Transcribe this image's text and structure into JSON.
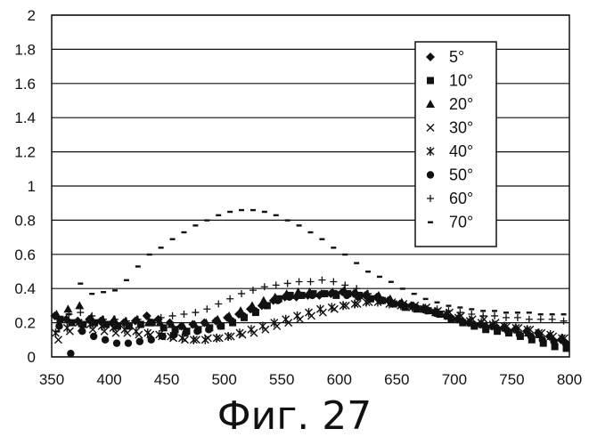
{
  "caption": "Фиг. 27",
  "chart_data": {
    "type": "scatter",
    "title": "",
    "xlabel": "",
    "ylabel": "",
    "xlim": [
      350,
      800
    ],
    "ylim": [
      0,
      2
    ],
    "grid": true,
    "legend_position": "top-right",
    "x_ticks": [
      "350",
      "400",
      "450",
      "500",
      "550",
      "600",
      "650",
      "700",
      "750",
      "800"
    ],
    "y_ticks": [
      "0",
      "0.2",
      "0.4",
      "0.6",
      "0.8",
      "1",
      "1.2",
      "1.4",
      "1.6",
      "1.8",
      "2"
    ],
    "x": [
      355,
      365,
      375,
      385,
      395,
      405,
      415,
      425,
      435,
      445,
      455,
      465,
      475,
      485,
      495,
      505,
      515,
      525,
      535,
      545,
      555,
      565,
      575,
      585,
      595,
      605,
      615,
      625,
      635,
      645,
      655,
      665,
      675,
      685,
      695,
      705,
      715,
      725,
      735,
      745,
      755,
      765,
      775,
      785,
      795
    ],
    "series": [
      {
        "name": "5°",
        "marker": "diamond",
        "values": [
          0.24,
          0.22,
          0.21,
          0.22,
          0.21,
          0.2,
          0.2,
          0.21,
          0.24,
          0.22,
          0.2,
          0.18,
          0.19,
          0.2,
          0.21,
          0.23,
          0.25,
          0.28,
          0.3,
          0.33,
          0.35,
          0.35,
          0.36,
          0.36,
          0.37,
          0.38,
          0.37,
          0.36,
          0.35,
          0.33,
          0.31,
          0.3,
          0.28,
          0.26,
          0.24,
          0.22,
          0.2,
          0.19,
          0.18,
          0.17,
          0.16,
          0.15,
          0.14,
          0.12,
          0.1
        ]
      },
      {
        "name": "10°",
        "marker": "square",
        "values": [
          0.22,
          0.2,
          0.19,
          0.2,
          0.19,
          0.18,
          0.18,
          0.19,
          0.2,
          0.17,
          0.16,
          0.15,
          0.16,
          0.17,
          0.18,
          0.2,
          0.23,
          0.26,
          0.3,
          0.34,
          0.36,
          0.36,
          0.37,
          0.37,
          0.36,
          0.37,
          0.36,
          0.34,
          0.33,
          0.31,
          0.29,
          0.28,
          0.27,
          0.25,
          0.22,
          0.2,
          0.18,
          0.16,
          0.15,
          0.14,
          0.12,
          0.1,
          0.08,
          0.06,
          0.05
        ]
      },
      {
        "name": "20°",
        "marker": "triangle",
        "values": [
          0.25,
          0.28,
          0.3,
          0.23,
          0.22,
          0.22,
          0.21,
          0.22,
          0.2,
          0.2,
          0.19,
          0.18,
          0.19,
          0.2,
          0.22,
          0.24,
          0.27,
          0.3,
          0.33,
          0.35,
          0.37,
          0.38,
          0.38,
          0.37,
          0.38,
          0.39,
          0.38,
          0.37,
          0.36,
          0.34,
          0.32,
          0.3,
          0.28,
          0.26,
          0.24,
          0.22,
          0.2,
          0.19,
          0.18,
          0.17,
          0.16,
          0.14,
          0.13,
          0.12,
          0.11
        ]
      },
      {
        "name": "30°",
        "marker": "x",
        "values": [
          0.1,
          0.15,
          0.17,
          0.16,
          0.15,
          0.14,
          0.14,
          0.13,
          0.13,
          0.12,
          0.11,
          0.1,
          0.1,
          0.11,
          0.11,
          0.12,
          0.13,
          0.14,
          0.16,
          0.18,
          0.2,
          0.22,
          0.24,
          0.26,
          0.28,
          0.3,
          0.31,
          0.32,
          0.33,
          0.32,
          0.31,
          0.3,
          0.29,
          0.27,
          0.26,
          0.24,
          0.22,
          0.22,
          0.2,
          0.18,
          0.17,
          0.16,
          0.14,
          0.12,
          0.11
        ]
      },
      {
        "name": "40°",
        "marker": "asterisk",
        "values": [
          0.14,
          0.17,
          0.2,
          0.19,
          0.18,
          0.17,
          0.16,
          0.15,
          0.14,
          0.13,
          0.12,
          0.11,
          0.1,
          0.1,
          0.11,
          0.12,
          0.14,
          0.16,
          0.18,
          0.2,
          0.22,
          0.24,
          0.26,
          0.28,
          0.29,
          0.3,
          0.31,
          0.32,
          0.32,
          0.31,
          0.3,
          0.29,
          0.28,
          0.26,
          0.25,
          0.23,
          0.21,
          0.2,
          0.19,
          0.18,
          0.17,
          0.16,
          0.14,
          0.13,
          0.11
        ]
      },
      {
        "name": "50°",
        "marker": "circle",
        "values": [
          0.18,
          0.02,
          0.15,
          0.12,
          0.1,
          0.08,
          0.08,
          0.09,
          0.1,
          0.12,
          0.13,
          0.14,
          0.15,
          0.16,
          0.18,
          0.21,
          0.24,
          0.27,
          0.3,
          0.33,
          0.35,
          0.36,
          0.36,
          0.37,
          0.37,
          0.36,
          0.35,
          0.34,
          0.33,
          0.31,
          0.3,
          0.29,
          0.27,
          0.25,
          0.23,
          0.21,
          0.19,
          0.18,
          0.17,
          0.15,
          0.13,
          0.12,
          0.1,
          0.09,
          0.08
        ]
      },
      {
        "name": "60°",
        "marker": "plus",
        "values": [
          0.22,
          0.25,
          0.26,
          0.24,
          0.22,
          0.22,
          0.21,
          0.22,
          0.22,
          0.23,
          0.24,
          0.25,
          0.26,
          0.28,
          0.31,
          0.34,
          0.37,
          0.39,
          0.41,
          0.42,
          0.43,
          0.44,
          0.44,
          0.45,
          0.44,
          0.42,
          0.4,
          0.37,
          0.35,
          0.33,
          0.31,
          0.3,
          0.29,
          0.28,
          0.27,
          0.26,
          0.25,
          0.24,
          0.24,
          0.23,
          0.23,
          0.22,
          0.22,
          0.22,
          0.21
        ]
      },
      {
        "name": "70°",
        "marker": "dash",
        "values": [
          0.15,
          0.25,
          0.43,
          0.37,
          0.38,
          0.39,
          0.45,
          0.53,
          0.6,
          0.64,
          0.69,
          0.73,
          0.77,
          0.8,
          0.83,
          0.85,
          0.86,
          0.86,
          0.85,
          0.83,
          0.8,
          0.77,
          0.73,
          0.69,
          0.64,
          0.6,
          0.55,
          0.5,
          0.47,
          0.44,
          0.4,
          0.37,
          0.34,
          0.32,
          0.3,
          0.29,
          0.28,
          0.27,
          0.27,
          0.26,
          0.26,
          0.26,
          0.25,
          0.25,
          0.25
        ]
      }
    ]
  }
}
